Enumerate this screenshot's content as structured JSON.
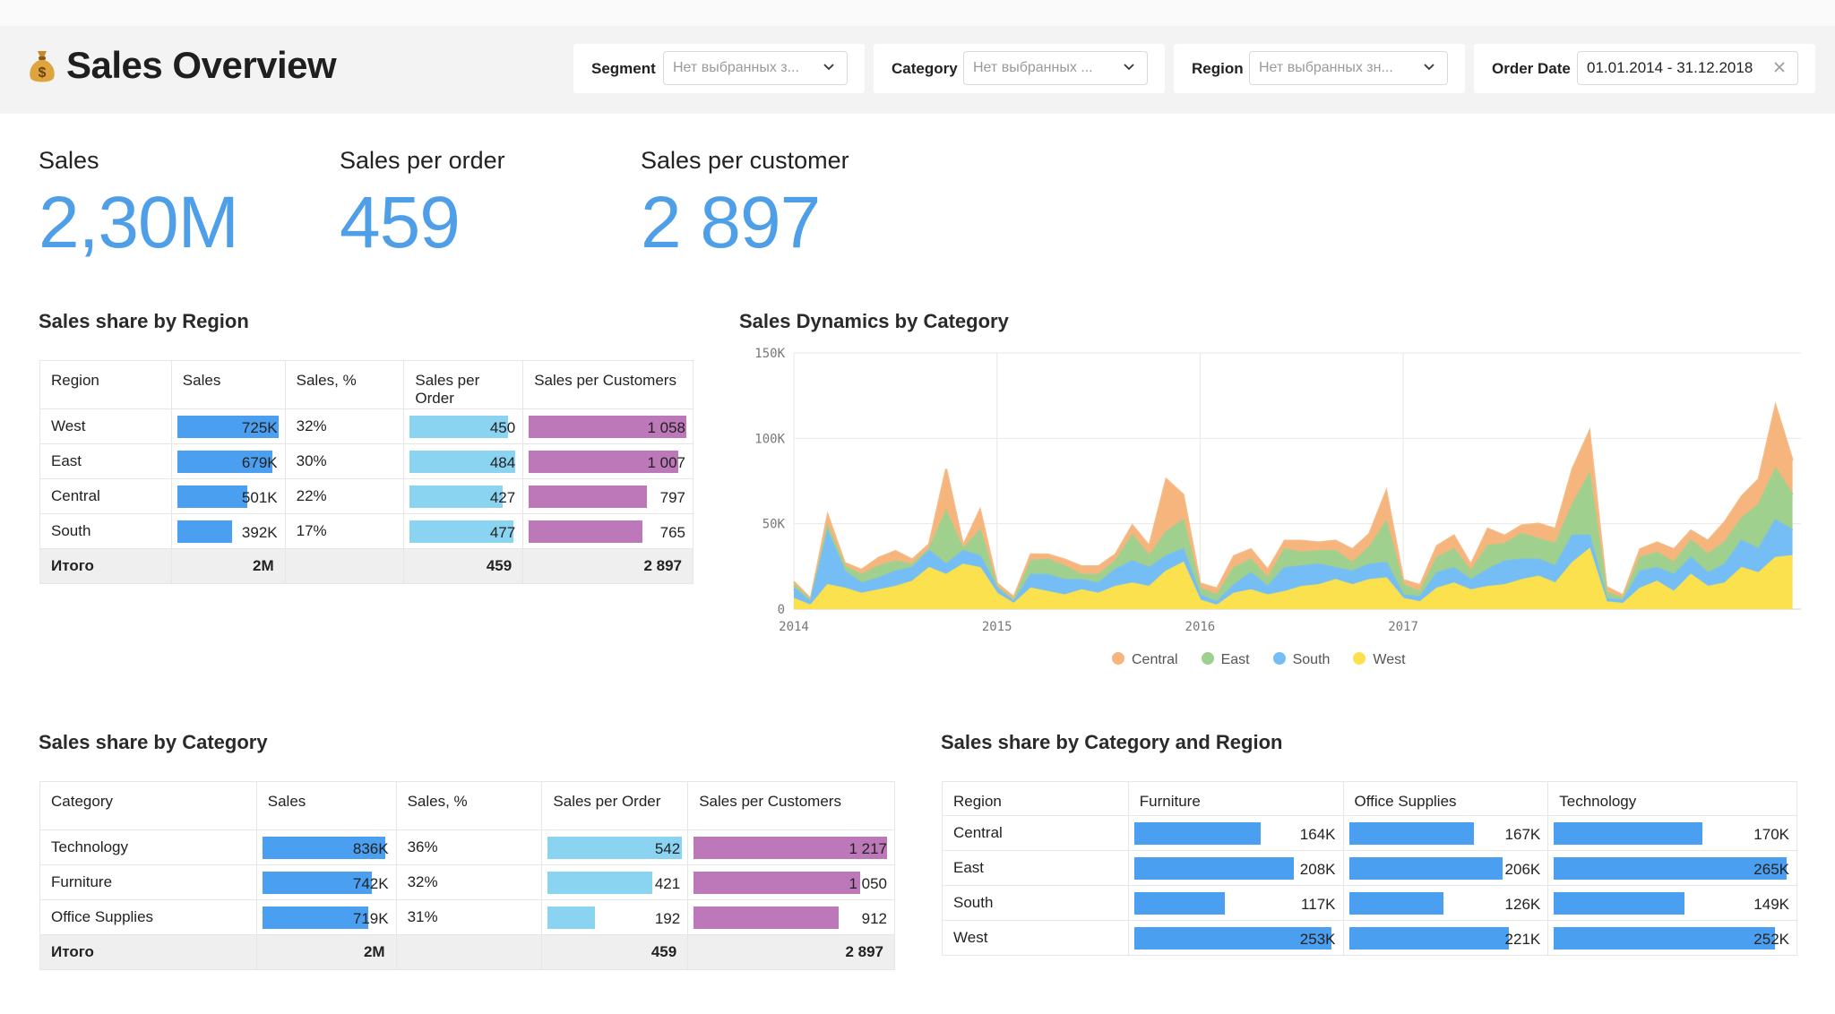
{
  "header": {
    "title": "Sales Overview",
    "logo_icon": "money-bag-icon",
    "filters": [
      {
        "label": "Segment",
        "placeholder": "Нет выбранных з..."
      },
      {
        "label": "Category",
        "placeholder": "Нет выбранных ..."
      },
      {
        "label": "Region",
        "placeholder": "Нет выбранных зн..."
      },
      {
        "label": "Order Date",
        "value": "01.01.2014 - 31.12.2018"
      }
    ]
  },
  "kpis": [
    {
      "label": "Sales",
      "value": "2,30M"
    },
    {
      "label": "Sales per order",
      "value": "459"
    },
    {
      "label": "Sales per customer",
      "value": "2 897"
    }
  ],
  "colors": {
    "kpi": "#4f9fe8",
    "sales_bar": "#4a9ff0",
    "per_order_bar": "#8ad4f2",
    "per_customer_bar": "#bd78b9",
    "central": "#f5b57c",
    "east": "#9fd08e",
    "south": "#75bdf5",
    "west": "#fbe14d"
  },
  "region_table": {
    "title": "Sales share by Region",
    "columns": [
      "Region",
      "Sales",
      "Sales, %",
      "Sales per Order",
      "Sales per Customers"
    ],
    "rows": [
      {
        "name": "West",
        "sales": "725K",
        "share": "32%",
        "per_order": "450",
        "per_customer": "1 058",
        "sales_frac": 1.0,
        "order_frac": 0.93,
        "customer_frac": 1.0
      },
      {
        "name": "East",
        "sales": "679K",
        "share": "30%",
        "per_order": "484",
        "per_customer": "1 007",
        "sales_frac": 0.94,
        "order_frac": 1.0,
        "customer_frac": 0.95
      },
      {
        "name": "Central",
        "sales": "501K",
        "share": "22%",
        "per_order": "427",
        "per_customer": "797",
        "sales_frac": 0.69,
        "order_frac": 0.88,
        "customer_frac": 0.75
      },
      {
        "name": "South",
        "sales": "392K",
        "share": "17%",
        "per_order": "477",
        "per_customer": "765",
        "sales_frac": 0.54,
        "order_frac": 0.98,
        "customer_frac": 0.72
      }
    ],
    "total": {
      "name": "Итого",
      "sales": "2M",
      "share": "",
      "per_order": "459",
      "per_customer": "2 897"
    }
  },
  "category_table": {
    "title": "Sales share by Category",
    "columns": [
      "Category",
      "Sales",
      "Sales, %",
      "Sales per Order",
      "Sales per Customers"
    ],
    "rows": [
      {
        "name": "Technology",
        "sales": "836K",
        "share": "36%",
        "per_order": "542",
        "per_customer": "1 217",
        "sales_frac": 1.0,
        "order_frac": 1.0,
        "customer_frac": 1.0
      },
      {
        "name": "Furniture",
        "sales": "742K",
        "share": "32%",
        "per_order": "421",
        "per_customer": "1 050",
        "sales_frac": 0.89,
        "order_frac": 0.78,
        "customer_frac": 0.86
      },
      {
        "name": "Office Supplies",
        "sales": "719K",
        "share": "31%",
        "per_order": "192",
        "per_customer": "912",
        "sales_frac": 0.86,
        "order_frac": 0.35,
        "customer_frac": 0.75
      }
    ],
    "total": {
      "name": "Итого",
      "sales": "2M",
      "share": "",
      "per_order": "459",
      "per_customer": "2 897"
    }
  },
  "cat_region_table": {
    "title": "Sales share by Category and Region",
    "columns": [
      "Region",
      "Furniture",
      "Office Supplies",
      "Technology"
    ],
    "rows": [
      {
        "name": "Central",
        "furniture": "164K",
        "office": "167K",
        "technology": "170K",
        "f_frac": 0.64,
        "o_frac": 0.78,
        "t_frac": 0.64
      },
      {
        "name": "East",
        "furniture": "208K",
        "office": "206K",
        "technology": "265K",
        "f_frac": 0.81,
        "o_frac": 0.96,
        "t_frac": 1.0
      },
      {
        "name": "South",
        "furniture": "117K",
        "office": "126K",
        "technology": "149K",
        "f_frac": 0.46,
        "o_frac": 0.59,
        "t_frac": 0.56
      },
      {
        "name": "West",
        "furniture": "253K",
        "office": "221K",
        "technology": "252K",
        "f_frac": 1.0,
        "o_frac": 1.0,
        "t_frac": 0.95
      }
    ]
  },
  "chart_data": {
    "type": "area",
    "title": "Sales Dynamics by Category",
    "stacked": true,
    "x_ticks": [
      "2014",
      "2015",
      "2016",
      "2017"
    ],
    "y_ticks": [
      "0",
      "50K",
      "100K",
      "150K"
    ],
    "ylim": [
      0,
      150000
    ],
    "x_start": "2014-01",
    "x_step": "month",
    "legend_position": "bottom",
    "series": [
      {
        "name": "West",
        "color_key": "west",
        "values": [
          6000,
          2000,
          14000,
          12000,
          9000,
          11000,
          13000,
          16000,
          24000,
          20000,
          26000,
          24000,
          9000,
          3000,
          12000,
          10000,
          8000,
          11000,
          9000,
          13000,
          15000,
          13000,
          22000,
          27000,
          5000,
          2000,
          9000,
          11000,
          8000,
          10000,
          13000,
          14000,
          17000,
          14000,
          17000,
          18000,
          6000,
          4000,
          12000,
          15000,
          11000,
          13000,
          14000,
          17000,
          19000,
          15000,
          27000,
          35000,
          4000,
          3000,
          12000,
          16000,
          10000,
          20000,
          13000,
          15000,
          24000,
          21000,
          30000,
          31000
        ]
      },
      {
        "name": "South",
        "color_key": "south",
        "values": [
          6000,
          2000,
          31000,
          10000,
          6000,
          7000,
          9000,
          8000,
          10000,
          6000,
          8000,
          7000,
          3000,
          1000,
          8000,
          10000,
          9000,
          6000,
          6000,
          10000,
          13000,
          11000,
          9000,
          8000,
          3000,
          2000,
          5000,
          10000,
          5000,
          14000,
          12000,
          12000,
          7000,
          8000,
          9000,
          9000,
          2000,
          3000,
          9000,
          9000,
          6000,
          10000,
          14000,
          12000,
          10000,
          10000,
          16000,
          8000,
          2000,
          2000,
          10000,
          8000,
          10000,
          10000,
          8000,
          11000,
          16000,
          14000,
          22000,
          15000
        ]
      },
      {
        "name": "East",
        "color_key": "east",
        "values": [
          2000,
          1000,
          3000,
          3000,
          5000,
          7000,
          6000,
          2000,
          1000,
          31000,
          1000,
          15000,
          1000,
          1000,
          8000,
          9000,
          8000,
          3000,
          5000,
          5000,
          15000,
          7000,
          14000,
          17000,
          4000,
          4000,
          10000,
          8000,
          5000,
          11000,
          8000,
          8000,
          10000,
          5000,
          10000,
          24000,
          6000,
          3000,
          9000,
          11000,
          5000,
          14000,
          10000,
          15000,
          12000,
          13000,
          18000,
          36000,
          4000,
          1000,
          8000,
          9000,
          7000,
          10000,
          11000,
          13000,
          13000,
          26000,
          30000,
          21000
        ]
      },
      {
        "name": "Central",
        "color_key": "central",
        "values": [
          2000,
          1000,
          7000,
          2000,
          3000,
          5000,
          6000,
          3000,
          3000,
          25000,
          2000,
          12000,
          2000,
          2000,
          4000,
          3000,
          4000,
          5000,
          5000,
          4000,
          6000,
          6000,
          31000,
          15000,
          3000,
          4000,
          7000,
          6000,
          5000,
          5000,
          7000,
          5000,
          6000,
          8000,
          8000,
          18000,
          3000,
          4000,
          7000,
          8000,
          4000,
          10000,
          5000,
          5000,
          9000,
          9000,
          21000,
          25000,
          3000,
          2000,
          5000,
          6000,
          8000,
          6000,
          8000,
          12000,
          13000,
          15000,
          37000,
          20000
        ]
      }
    ]
  }
}
